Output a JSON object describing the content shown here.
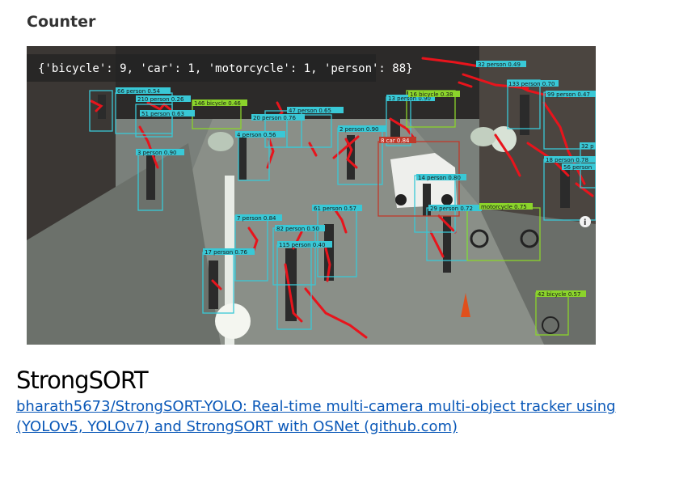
{
  "section": {
    "heading": "Counter"
  },
  "video": {
    "counter_text": "{'bicycle': 9, 'car': 1, 'motorcycle': 1, 'person': 88}",
    "detections": [
      "66 person 0.54",
      "210 person 0.26",
      "146 bicycle 0.46",
      "51 person 0.63",
      "3 person 0.90",
      "47 person 0.65",
      "20 person 0.76",
      "4 person 0.56",
      "2 person 0.90",
      "13 person 0.90",
      "16 bicycle 0.38",
      "133 person 0.70",
      "32 person 0.49",
      "99 person 0.47",
      "8 car 0.84",
      "14 person 0.80",
      "18 person 0.78",
      "56 person",
      "32 p",
      "61 person 0.57",
      "7 person 0.84",
      "82 person 0.50",
      "29 person 0.72",
      "motorcycle 0.75",
      "115 person 0.40",
      "17 person 0.76",
      "42 bicycle 0.57"
    ]
  },
  "tool": {
    "title": "StrongSORT",
    "link_line1": "bharath5673/StrongSORT-YOLO: Real-time multi-camera multi-object tracker using",
    "link_line2": "(YOLOv5, YOLOv7) and StrongSORT with OSNet (github.com)"
  },
  "colors": {
    "person_box": "#39c8d6",
    "bicycle_box": "#8bd42b",
    "car_box": "#c0392b",
    "track_trail": "#e8141c",
    "link": "#0a58b8"
  }
}
